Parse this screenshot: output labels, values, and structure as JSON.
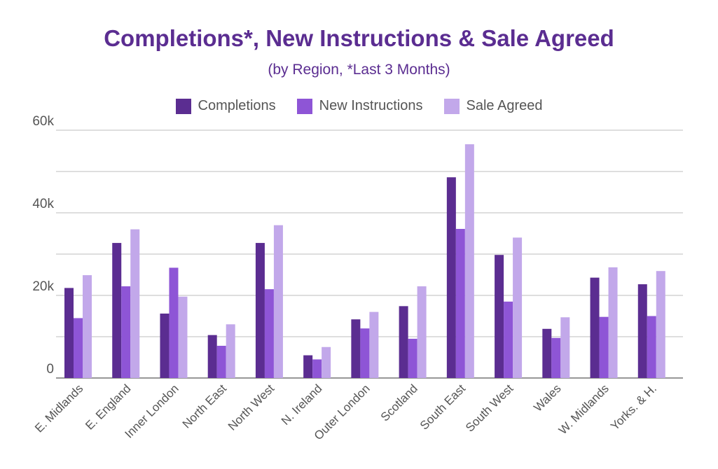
{
  "chart_data": {
    "type": "bar",
    "title": "Completions*, New Instructions & Sale Agreed",
    "subtitle": "(by Region, *Last 3 Months)",
    "categories": [
      "E. Midlands",
      "E. England",
      "Inner London",
      "North East",
      "North West",
      "N. Ireland",
      "Outer London",
      "Scotland",
      "South East",
      "South West",
      "Wales",
      "W. Midlands",
      "Yorks. & H."
    ],
    "series": [
      {
        "name": "Completions",
        "color": "#5b2d91",
        "values": [
          21800,
          32700,
          15600,
          10400,
          32700,
          5500,
          14200,
          17400,
          48600,
          29800,
          11900,
          24300,
          22700
        ]
      },
      {
        "name": "New Instructions",
        "color": "#8e55d6",
        "values": [
          14500,
          22200,
          26700,
          7800,
          21500,
          4500,
          12000,
          9500,
          36100,
          18500,
          9700,
          14800,
          15000
        ]
      },
      {
        "name": "Sale Agreed",
        "color": "#c2a8ea",
        "values": [
          24900,
          36000,
          19700,
          13000,
          37000,
          7500,
          16000,
          22200,
          56600,
          34000,
          14700,
          26800,
          25900
        ]
      }
    ],
    "ylim": [
      0,
      60000
    ],
    "yticks": [
      {
        "value": 0,
        "label": "0"
      },
      {
        "value": 20000,
        "label": "20k"
      },
      {
        "value": 40000,
        "label": "40k"
      },
      {
        "value": 60000,
        "label": "60k"
      }
    ],
    "gridlines": [
      0,
      10000,
      20000,
      30000,
      40000,
      50000,
      60000
    ],
    "grid": true,
    "legend_position": "top-center"
  }
}
